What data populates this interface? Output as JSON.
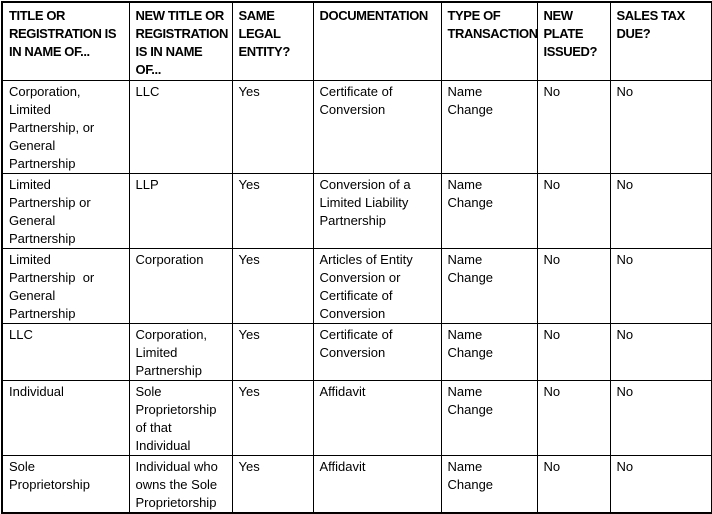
{
  "document": {
    "kind": "entity-conversion-title-registration-table",
    "colors": {
      "text": "#000000",
      "border": "#000000",
      "background": "#ffffff"
    }
  },
  "table": {
    "headers": [
      "TITLE OR\nREGISTRATION IS\nIN NAME OF...",
      "NEW TITLE OR\nREGISTRATION\nIS IN NAME\nOF...",
      "SAME\nLEGAL\nENTITY?",
      "DOCUMENTATION",
      "TYPE OF\nTRANSACTION",
      "NEW\nPLATE\nISSUED?",
      "SALES TAX\nDUE?"
    ],
    "rows": [
      [
        "Corporation,\nLimited\nPartnership, or\nGeneral\nPartnership",
        "LLC",
        "Yes",
        "Certificate of\nConversion",
        "Name Change",
        "No",
        "No"
      ],
      [
        "Limited\nPartnership or\nGeneral\nPartnership",
        "LLP",
        "Yes",
        "Conversion of a\nLimited Liability\nPartnership",
        "Name Change",
        "No",
        "No"
      ],
      [
        "Limited\nPartnership  or\nGeneral\nPartnership",
        "Corporation",
        "Yes",
        "Articles of Entity\nConversion or\nCertificate of\nConversion",
        "Name Change",
        "No",
        "No"
      ],
      [
        "LLC",
        "Corporation,\nLimited\nPartnership",
        "Yes",
        "Certificate of\nConversion",
        "Name Change",
        "No",
        "No"
      ],
      [
        "Individual",
        "Sole\nProprietorship\nof that\nIndividual",
        "Yes",
        "Affidavit",
        "Name Change",
        "No",
        "No"
      ],
      [
        "Sole\nProprietorship",
        "Individual who\nowns the Sole\nProprietorship",
        "Yes",
        "Affidavit",
        "Name Change",
        "No",
        "No"
      ]
    ]
  }
}
